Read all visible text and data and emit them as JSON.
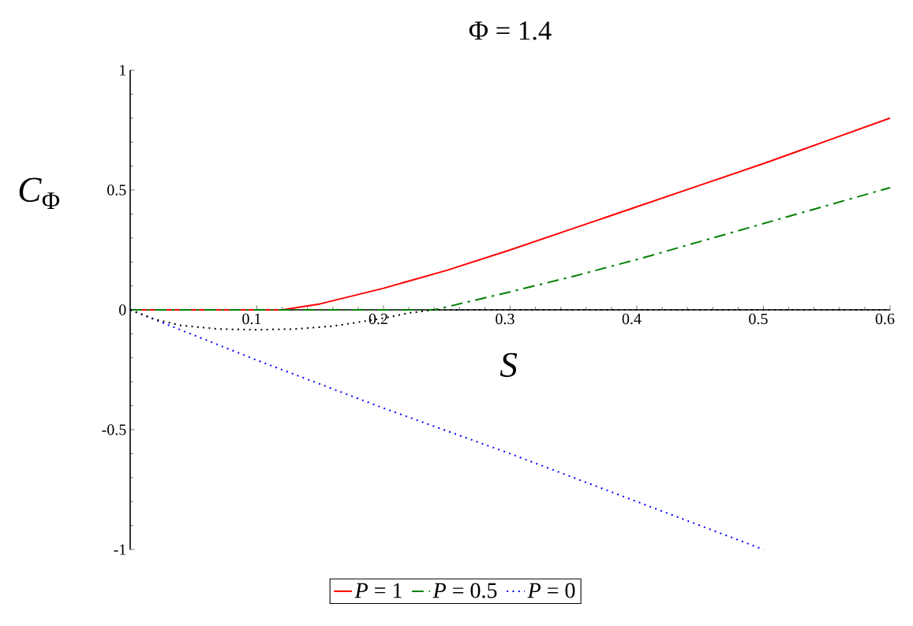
{
  "chart_data": {
    "type": "line",
    "title": "Φ = 1.4",
    "xlabel": "*S*",
    "ylabel": "*C*$_{Φ}$",
    "xlim": [
      0,
      0.6
    ],
    "ylim": [
      -1,
      1
    ],
    "xticks": [
      0.1,
      0.2,
      0.3,
      0.4,
      0.5,
      0.6
    ],
    "yticks": [
      -1,
      -0.5,
      0,
      0.5,
      1
    ],
    "grid": false,
    "legend": "bottom",
    "series": [
      {
        "name": "*P* = 1",
        "color": "#ff0000",
        "line_style": "solid",
        "x": [
          0,
          0.12,
          0.15,
          0.2,
          0.25,
          0.3,
          0.35,
          0.4,
          0.45,
          0.5,
          0.55,
          0.6
        ],
        "values": [
          0,
          0,
          0.025,
          0.09,
          0.165,
          0.25,
          0.34,
          0.43,
          0.52,
          0.61,
          0.705,
          0.8
        ]
      },
      {
        "name": "*P* = 0.5",
        "color": "#008000",
        "line_style": "dashdot",
        "x": [
          0,
          0.24,
          0.3,
          0.35,
          0.4,
          0.45,
          0.5,
          0.55,
          0.6
        ],
        "values": [
          0,
          0,
          0.075,
          0.14,
          0.21,
          0.285,
          0.36,
          0.435,
          0.51
        ]
      },
      {
        "name": "*P* = 0",
        "color": "#0000ff",
        "line_style": "dotted",
        "x": [
          0,
          0.1,
          0.2,
          0.3,
          0.4,
          0.5
        ],
        "values": [
          0,
          -0.21,
          -0.41,
          -0.6,
          -0.8,
          -1.0
        ]
      },
      {
        "color": "#000000",
        "line_style": "dotted",
        "x": [
          0,
          0.02,
          0.04,
          0.07,
          0.1,
          0.13,
          0.16,
          0.2,
          0.22,
          0.24,
          0.6
        ],
        "values": [
          0,
          -0.04,
          -0.065,
          -0.08,
          -0.083,
          -0.08,
          -0.068,
          -0.035,
          -0.013,
          0,
          0
        ]
      }
    ]
  }
}
